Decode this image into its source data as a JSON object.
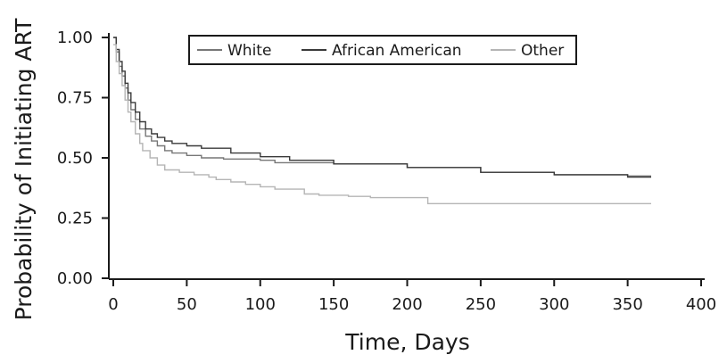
{
  "chart_data": {
    "type": "line",
    "xlabel": "Time, Days",
    "ylabel": "Probability of Initiating ART",
    "xlim": [
      0,
      400
    ],
    "ylim": [
      0,
      1
    ],
    "x_ticks": [
      "0",
      "50",
      "100",
      "150",
      "200",
      "250",
      "300",
      "350",
      "400"
    ],
    "y_ticks": [
      "0.00",
      "0.25",
      "0.50",
      "0.75",
      "1.00"
    ],
    "grid": false,
    "legend_position": "top",
    "series": [
      {
        "name": "White",
        "color": "#777777",
        "points": [
          [
            0,
            1.0
          ],
          [
            2,
            0.94
          ],
          [
            4,
            0.88
          ],
          [
            6,
            0.84
          ],
          [
            8,
            0.79
          ],
          [
            10,
            0.74
          ],
          [
            12,
            0.7
          ],
          [
            15,
            0.66
          ],
          [
            18,
            0.62
          ],
          [
            22,
            0.59
          ],
          [
            26,
            0.57
          ],
          [
            30,
            0.55
          ],
          [
            35,
            0.53
          ],
          [
            40,
            0.52
          ],
          [
            50,
            0.51
          ],
          [
            60,
            0.5
          ],
          [
            75,
            0.495
          ],
          [
            100,
            0.49
          ],
          [
            110,
            0.48
          ],
          [
            150,
            0.475
          ],
          [
            200,
            0.46
          ],
          [
            250,
            0.44
          ],
          [
            300,
            0.43
          ],
          [
            350,
            0.425
          ],
          [
            366,
            0.425
          ]
        ]
      },
      {
        "name": "African American",
        "color": "#3a3a3a",
        "points": [
          [
            0,
            1.0
          ],
          [
            2,
            0.95
          ],
          [
            4,
            0.9
          ],
          [
            6,
            0.86
          ],
          [
            8,
            0.81
          ],
          [
            10,
            0.77
          ],
          [
            12,
            0.73
          ],
          [
            15,
            0.69
          ],
          [
            18,
            0.65
          ],
          [
            22,
            0.62
          ],
          [
            26,
            0.6
          ],
          [
            30,
            0.585
          ],
          [
            35,
            0.57
          ],
          [
            40,
            0.56
          ],
          [
            50,
            0.55
          ],
          [
            60,
            0.54
          ],
          [
            80,
            0.52
          ],
          [
            100,
            0.505
          ],
          [
            120,
            0.49
          ],
          [
            150,
            0.475
          ],
          [
            200,
            0.46
          ],
          [
            250,
            0.44
          ],
          [
            300,
            0.43
          ],
          [
            350,
            0.42
          ],
          [
            366,
            0.42
          ]
        ]
      },
      {
        "name": "Other",
        "color": "#b5b5b5",
        "points": [
          [
            0,
            0.97
          ],
          [
            2,
            0.9
          ],
          [
            4,
            0.85
          ],
          [
            6,
            0.8
          ],
          [
            8,
            0.74
          ],
          [
            10,
            0.69
          ],
          [
            12,
            0.65
          ],
          [
            15,
            0.6
          ],
          [
            18,
            0.56
          ],
          [
            20,
            0.53
          ],
          [
            25,
            0.5
          ],
          [
            30,
            0.47
          ],
          [
            35,
            0.45
          ],
          [
            45,
            0.44
          ],
          [
            55,
            0.43
          ],
          [
            65,
            0.42
          ],
          [
            70,
            0.41
          ],
          [
            80,
            0.4
          ],
          [
            90,
            0.39
          ],
          [
            100,
            0.38
          ],
          [
            110,
            0.37
          ],
          [
            130,
            0.35
          ],
          [
            140,
            0.345
          ],
          [
            160,
            0.34
          ],
          [
            175,
            0.335
          ],
          [
            213,
            0.335
          ],
          [
            214,
            0.31
          ],
          [
            366,
            0.31
          ]
        ]
      }
    ]
  }
}
